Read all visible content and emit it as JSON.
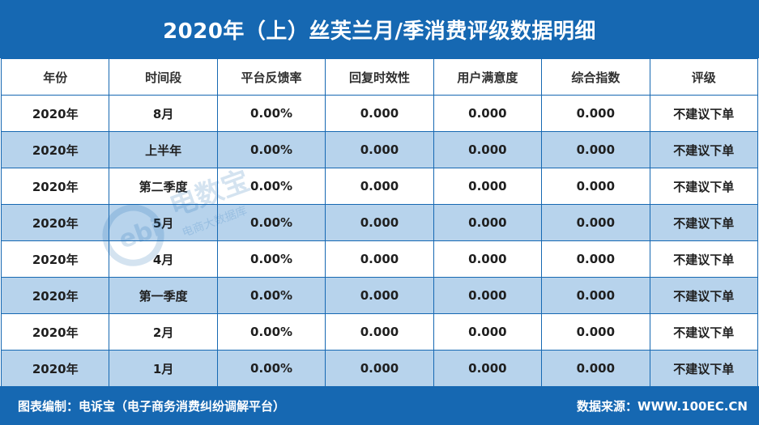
{
  "title": "2020年（上）丝芙兰月/季消费评级数据明细",
  "table": {
    "headers": [
      "年份",
      "时间段",
      "平台反馈率",
      "回复时效性",
      "用户满意度",
      "综合指数",
      "评级"
    ],
    "rows": [
      [
        "2020年",
        "8月",
        "0.00%",
        "0.000",
        "0.000",
        "0.000",
        "不建议下单"
      ],
      [
        "2020年",
        "上半年",
        "0.00%",
        "0.000",
        "0.000",
        "0.000",
        "不建议下单"
      ],
      [
        "2020年",
        "第二季度",
        "0.00%",
        "0.000",
        "0.000",
        "0.000",
        "不建议下单"
      ],
      [
        "2020年",
        "5月",
        "0.00%",
        "0.000",
        "0.000",
        "0.000",
        "不建议下单"
      ],
      [
        "2020年",
        "4月",
        "0.00%",
        "0.000",
        "0.000",
        "0.000",
        "不建议下单"
      ],
      [
        "2020年",
        "第一季度",
        "0.00%",
        "0.000",
        "0.000",
        "0.000",
        "不建议下单"
      ],
      [
        "2020年",
        "2月",
        "0.00%",
        "0.000",
        "0.000",
        "0.000",
        "不建议下单"
      ],
      [
        "2020年",
        "1月",
        "0.00%",
        "0.000",
        "0.000",
        "0.000",
        "不建议下单"
      ]
    ]
  },
  "footer": {
    "left": "图表编制：电诉宝（电子商务消费纠纷调解平台）",
    "right": "数据来源：WWW.100EC.CN"
  },
  "watermark": {
    "logo_text": "ebi",
    "brand": "电数宝",
    "sub": "电商大数据库"
  },
  "colors": {
    "primary": "#1668b2",
    "row_alt": "#b7d3ec"
  }
}
